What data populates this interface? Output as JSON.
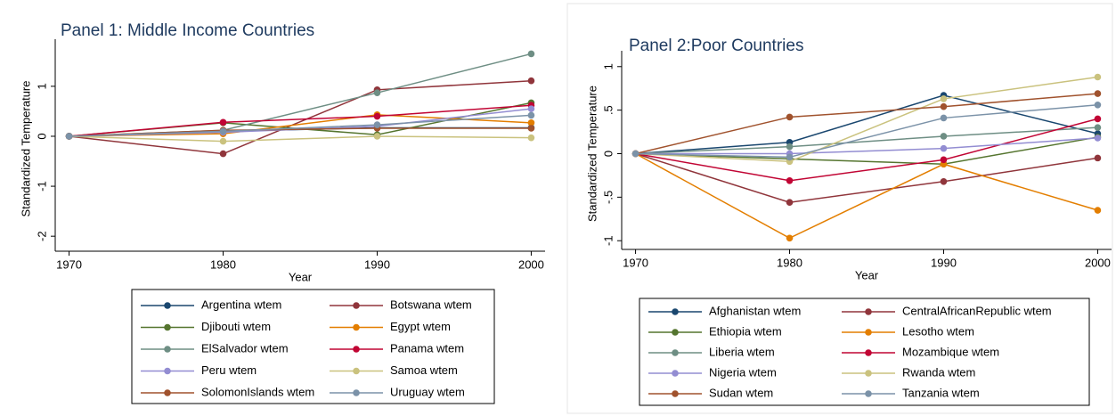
{
  "chart_data": [
    {
      "type": "line",
      "title": "Panel 1: Middle Income Countries",
      "x_label": "Year",
      "y_label": "Standardized Temperature",
      "x": [
        1970,
        1980,
        1990,
        2000
      ],
      "xlim": [
        1969.1,
        2000.9
      ],
      "xticks": [
        1970,
        1980,
        1990,
        2000
      ],
      "ylim": [
        -2.3,
        1.8
      ],
      "yticks": [
        -2,
        -1,
        0,
        1
      ],
      "series": [
        {
          "name": "Argentina wtem",
          "color": "#1a476f",
          "values": [
            0,
            0.1,
            0.17,
            0.17
          ]
        },
        {
          "name": "Botswana wtem",
          "color": "#90353b",
          "values": [
            0,
            -0.35,
            0.93,
            1.11
          ]
        },
        {
          "name": "Djibouti wtem",
          "color": "#55752f",
          "values": [
            0,
            0.27,
            0.03,
            0.67
          ]
        },
        {
          "name": "Egypt wtem",
          "color": "#e37e00",
          "values": [
            0,
            0.05,
            0.43,
            0.27
          ]
        },
        {
          "name": "ElSalvador wtem",
          "color": "#6e8e84",
          "values": [
            0,
            0.12,
            0.87,
            1.65
          ]
        },
        {
          "name": "Panama wtem",
          "color": "#c10534",
          "values": [
            0,
            0.28,
            0.4,
            0.62
          ]
        },
        {
          "name": "Peru wtem",
          "color": "#938dd2",
          "values": [
            0,
            0.08,
            0.2,
            0.55
          ]
        },
        {
          "name": "Samoa wtem",
          "color": "#cac27e",
          "values": [
            0,
            -0.1,
            0.0,
            -0.03
          ]
        },
        {
          "name": "SolomonIslands wtem",
          "color": "#a0522d",
          "values": [
            0,
            0.12,
            0.16,
            0.16
          ]
        },
        {
          "name": "Uruguay wtem",
          "color": "#7b92a8",
          "values": [
            0,
            0.1,
            0.23,
            0.42
          ]
        }
      ]
    },
    {
      "type": "line",
      "title": "Panel 2:Poor Countries",
      "x_label": "Year",
      "y_label": "Standardized Temperature",
      "x": [
        1970,
        1980,
        1990,
        2000
      ],
      "xlim": [
        1969.1,
        2000.9
      ],
      "xticks": [
        1970,
        1980,
        1990,
        2000
      ],
      "ylim": [
        -1.1,
        1.1
      ],
      "yticks": [
        -1,
        {
          "value": -0.5,
          "label": "-.5"
        },
        0,
        {
          "value": 0.5,
          "label": ".5"
        },
        1
      ],
      "series": [
        {
          "name": "Afghanistan wtem",
          "color": "#1a476f",
          "values": [
            0,
            0.13,
            0.67,
            0.23
          ]
        },
        {
          "name": "CentralAfricanRepublic wtem",
          "color": "#90353b",
          "values": [
            0,
            -0.56,
            -0.32,
            -0.05
          ]
        },
        {
          "name": "Ethiopia wtem",
          "color": "#55752f",
          "values": [
            0,
            -0.06,
            -0.12,
            0.19
          ]
        },
        {
          "name": "Lesotho wtem",
          "color": "#e37e00",
          "values": [
            0,
            -0.97,
            -0.12,
            -0.65
          ]
        },
        {
          "name": "Liberia wtem",
          "color": "#6e8e84",
          "values": [
            0,
            0.08,
            0.2,
            0.3
          ]
        },
        {
          "name": "Mozambique wtem",
          "color": "#c10534",
          "values": [
            0,
            -0.31,
            -0.07,
            0.4
          ]
        },
        {
          "name": "Nigeria wtem",
          "color": "#938dd2",
          "values": [
            0,
            0.0,
            0.06,
            0.18
          ]
        },
        {
          "name": "Rwanda wtem",
          "color": "#cac27e",
          "values": [
            0,
            -0.09,
            0.63,
            0.88
          ]
        },
        {
          "name": "Sudan wtem",
          "color": "#a0522d",
          "values": [
            0,
            0.42,
            0.54,
            0.69
          ]
        },
        {
          "name": "Tanzania wtem",
          "color": "#7b92a8",
          "values": [
            0,
            -0.04,
            0.41,
            0.56
          ]
        }
      ]
    }
  ]
}
